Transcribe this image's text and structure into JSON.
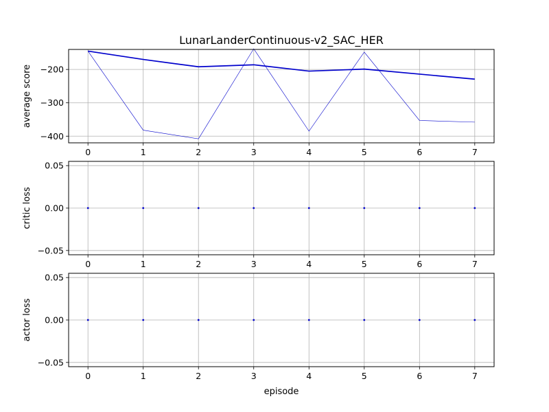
{
  "chart_data": [
    {
      "type": "line",
      "title": "LunarLanderContinuous-v2_SAC_HER",
      "xlabel": "",
      "ylabel": "average score",
      "x": [
        0,
        1,
        2,
        3,
        4,
        5,
        6,
        7
      ],
      "xlim": [
        -0.35,
        7.35
      ],
      "ylim": [
        -420,
        -140
      ],
      "yticks": [
        -400,
        -300,
        -200
      ],
      "grid": true,
      "series": [
        {
          "role": "per-episode",
          "color": "#0000cc",
          "values": [
            -145,
            -382,
            -408,
            -138,
            -385,
            -148,
            -353,
            -358
          ]
        },
        {
          "role": "average",
          "color": "#0000cc",
          "values": [
            -145,
            -170,
            -192,
            -186,
            -205,
            -199,
            -214,
            -229
          ]
        }
      ]
    },
    {
      "type": "scatter",
      "title": "",
      "xlabel": "",
      "ylabel": "critic loss",
      "x": [
        0,
        1,
        2,
        3,
        4,
        5,
        6,
        7
      ],
      "xlim": [
        -0.35,
        7.35
      ],
      "ylim": [
        -0.055,
        0.055
      ],
      "yticks": [
        -0.05,
        0.0,
        0.05
      ],
      "grid": true,
      "series": [
        {
          "color": "#0000cc",
          "values": [
            0,
            0,
            0,
            0,
            0,
            0,
            0,
            0
          ]
        }
      ]
    },
    {
      "type": "scatter",
      "title": "",
      "xlabel": "episode",
      "ylabel": "actor loss",
      "x": [
        0,
        1,
        2,
        3,
        4,
        5,
        6,
        7
      ],
      "xlim": [
        -0.35,
        7.35
      ],
      "ylim": [
        -0.055,
        0.055
      ],
      "yticks": [
        -0.05,
        0.0,
        0.05
      ],
      "grid": true,
      "series": [
        {
          "color": "#0000cc",
          "values": [
            0,
            0,
            0,
            0,
            0,
            0,
            0,
            0
          ]
        }
      ]
    }
  ]
}
